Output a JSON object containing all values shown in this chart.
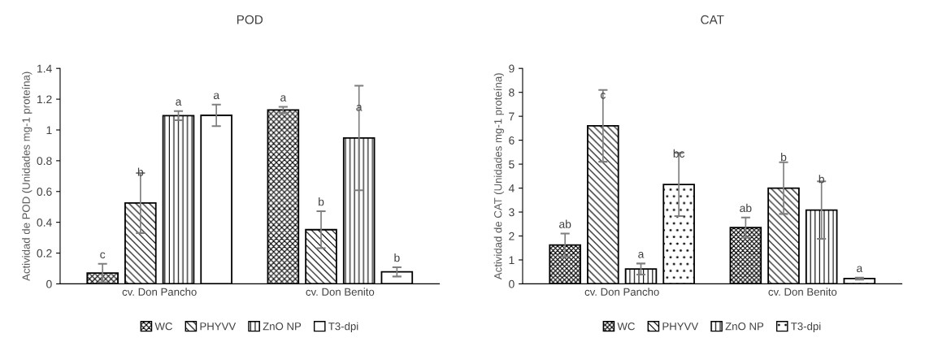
{
  "chart_data": [
    {
      "type": "bar",
      "title": "POD",
      "ylabel": "Actividad de POD (Unidades mg-1 proteína)",
      "categories": [
        "cv. Don Pancho",
        "cv. Don Benito"
      ],
      "ylim": [
        0,
        1.4
      ],
      "yticks": [
        0,
        0.2,
        0.4,
        0.6,
        0.8,
        1,
        1.2,
        1.4
      ],
      "legend": "bottom",
      "grid": false,
      "series": [
        {
          "name": "WC",
          "color": "#000000",
          "values": [
            0.07,
            1.13
          ],
          "errors": [
            0.06,
            0.02
          ],
          "value_labels": [
            "c",
            "a"
          ]
        },
        {
          "name": "PHYVV",
          "color": "#000000",
          "values": [
            0.525,
            0.352
          ],
          "errors": [
            0.195,
            0.12
          ],
          "value_labels": [
            "b",
            "b"
          ]
        },
        {
          "name": "ZnO NP",
          "color": "#000000",
          "values": [
            1.093,
            0.948
          ],
          "errors": [
            0.03,
            0.34
          ],
          "value_labels": [
            "a",
            "a"
          ]
        },
        {
          "name": "T3-dpi",
          "color": "#000000",
          "values": [
            1.095,
            0.078
          ],
          "errors": [
            0.07,
            0.03
          ],
          "value_labels": [
            "a",
            "b"
          ]
        }
      ]
    },
    {
      "type": "bar",
      "title": "CAT",
      "ylabel": "Actividad de CAT (Unidades mg-1 proteína)",
      "categories": [
        "cv. Don Pancho",
        "cv. Don Benito"
      ],
      "ylim": [
        0,
        9
      ],
      "yticks": [
        0,
        1,
        2,
        3,
        4,
        5,
        6,
        7,
        8,
        9
      ],
      "legend": "bottom",
      "grid": false,
      "series": [
        {
          "name": "WC",
          "color": "#000000",
          "values": [
            1.62,
            2.35
          ],
          "errors": [
            0.48,
            0.42
          ],
          "value_labels": [
            "ab",
            "ab"
          ]
        },
        {
          "name": "PHYVV",
          "color": "#000000",
          "values": [
            6.6,
            4.0
          ],
          "errors": [
            1.5,
            1.08
          ],
          "value_labels": [
            "c",
            "b"
          ]
        },
        {
          "name": "ZnO NP",
          "color": "#000000",
          "values": [
            0.62,
            3.08
          ],
          "errors": [
            0.23,
            1.2
          ],
          "value_labels": [
            "a",
            "b"
          ]
        },
        {
          "name": "T3-dpi",
          "color": "#000000",
          "values": [
            4.15,
            0.22
          ],
          "errors": [
            1.32,
            0.04
          ],
          "value_labels": [
            "bc",
            "a"
          ]
        }
      ]
    }
  ]
}
